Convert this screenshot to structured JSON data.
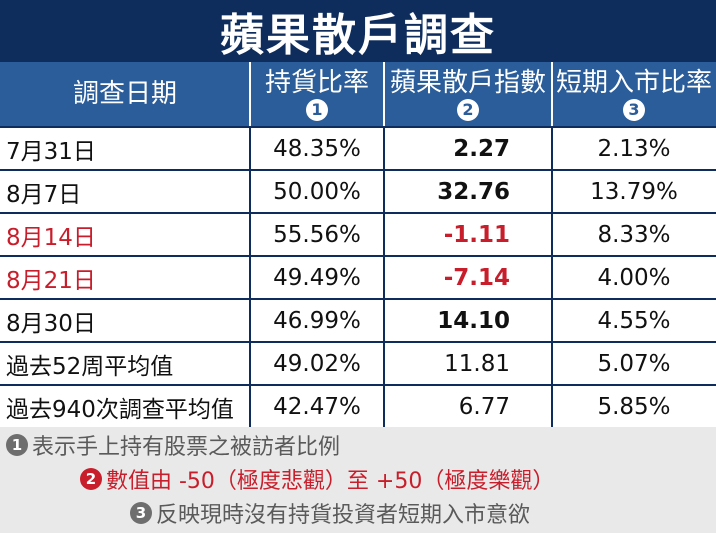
{
  "title": "蘋果散戶調查",
  "header": {
    "date": "調查日期",
    "holding": {
      "label": "持貨比率",
      "marker": "1"
    },
    "index": {
      "label": "蘋果散戶指數",
      "marker": "2"
    },
    "short_term": {
      "label": "短期入市比率",
      "marker": "3"
    }
  },
  "rows": [
    {
      "date": "7月31日",
      "holding": "48.35%",
      "index": "2.27",
      "short_term": "2.13%"
    },
    {
      "date": "8月7日",
      "holding": "50.00%",
      "index": "32.76",
      "short_term": "13.79%"
    },
    {
      "date": "8月14日",
      "holding": "55.56%",
      "index": "-1.11",
      "short_term": "8.33%"
    },
    {
      "date": "8月21日",
      "holding": "49.49%",
      "index": "-7.14",
      "short_term": "4.00%"
    },
    {
      "date": "8月30日",
      "holding": "46.99%",
      "index": "14.10",
      "short_term": "4.55%"
    },
    {
      "date": "過去52周平均值",
      "holding": "49.02%",
      "index": "11.81",
      "short_term": "5.07%"
    },
    {
      "date": "過去940次調查平均值",
      "holding": "42.47%",
      "index": "6.77",
      "short_term": "5.85%"
    }
  ],
  "notes": [
    {
      "marker": "1",
      "text": "表示手上持有股票之被訪者比例"
    },
    {
      "marker": "2",
      "text": "數值由 -50（極度悲觀）至 +50（極度樂觀）"
    },
    {
      "marker": "3",
      "text": "反映現時沒有持貨投資者短期入市意欲"
    }
  ],
  "colors": {
    "title_bg": "#0e2d5c",
    "header_bg": "#2a5d99",
    "negative_red": "#c81e2b",
    "footer_bg": "#e9e9e9"
  }
}
